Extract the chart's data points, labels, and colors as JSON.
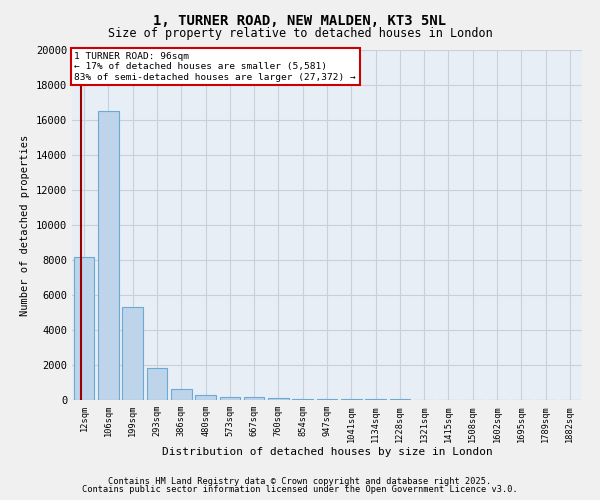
{
  "title1": "1, TURNER ROAD, NEW MALDEN, KT3 5NL",
  "title2": "Size of property relative to detached houses in London",
  "xlabel": "Distribution of detached houses by size in London",
  "ylabel": "Number of detached properties",
  "categories": [
    "12sqm",
    "106sqm",
    "199sqm",
    "293sqm",
    "386sqm",
    "480sqm",
    "573sqm",
    "667sqm",
    "760sqm",
    "854sqm",
    "947sqm",
    "1041sqm",
    "1134sqm",
    "1228sqm",
    "1321sqm",
    "1415sqm",
    "1508sqm",
    "1602sqm",
    "1695sqm",
    "1789sqm",
    "1882sqm"
  ],
  "values": [
    8200,
    16500,
    5300,
    1850,
    650,
    300,
    200,
    150,
    100,
    80,
    60,
    50,
    40,
    30,
    25,
    20,
    15,
    12,
    10,
    8,
    5
  ],
  "bar_color": "#bdd4ea",
  "bar_edge_color": "#6aaad4",
  "background_color": "#e8eef5",
  "grid_color": "#d0d8e4",
  "red_line_x": -0.12,
  "annotation_title": "1 TURNER ROAD: 96sqm",
  "annotation_line1": "← 17% of detached houses are smaller (5,581)",
  "annotation_line2": "83% of semi-detached houses are larger (27,372) →",
  "annotation_box_color": "#cc0000",
  "ylim": [
    0,
    20000
  ],
  "yticks": [
    0,
    2000,
    4000,
    6000,
    8000,
    10000,
    12000,
    14000,
    16000,
    18000,
    20000
  ],
  "footer1": "Contains HM Land Registry data © Crown copyright and database right 2025.",
  "footer2": "Contains public sector information licensed under the Open Government Licence v3.0.",
  "fig_bg": "#f0f0f0"
}
